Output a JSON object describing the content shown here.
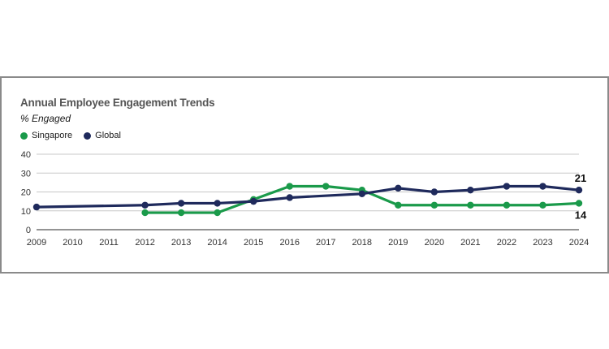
{
  "chart_data": {
    "type": "line",
    "title": "Annual Employee Engagement Trends",
    "subtitle": "% Engaged",
    "xlabel": "",
    "ylabel": "% Engaged",
    "x": [
      2009,
      2010,
      2011,
      2012,
      2013,
      2014,
      2015,
      2016,
      2017,
      2018,
      2019,
      2020,
      2021,
      2022,
      2023,
      2024
    ],
    "x_tick_labels": [
      "2009",
      "2010",
      "2011",
      "2012",
      "2013",
      "2014",
      "2015",
      "2016",
      "2017",
      "2018",
      "2019",
      "2020",
      "2021",
      "2022",
      "2023",
      "2024"
    ],
    "y_ticks": [
      0,
      10,
      20,
      30,
      40
    ],
    "y_tick_labels": [
      "0",
      "10",
      "20",
      "30",
      "40"
    ],
    "ylim": [
      0,
      40
    ],
    "grid": true,
    "legend_position": "top-left",
    "series": [
      {
        "name": "Singapore",
        "color": "#1a9a4a",
        "values": [
          null,
          null,
          null,
          9,
          9,
          9,
          16,
          23,
          23,
          21,
          13,
          13,
          13,
          13,
          13,
          14
        ],
        "end_label": "14"
      },
      {
        "name": "Global",
        "color": "#1f2a5c",
        "values": [
          12,
          null,
          null,
          13,
          14,
          14,
          15,
          17,
          null,
          19,
          22,
          20,
          21,
          23,
          23,
          21
        ],
        "end_label": "21"
      }
    ]
  }
}
